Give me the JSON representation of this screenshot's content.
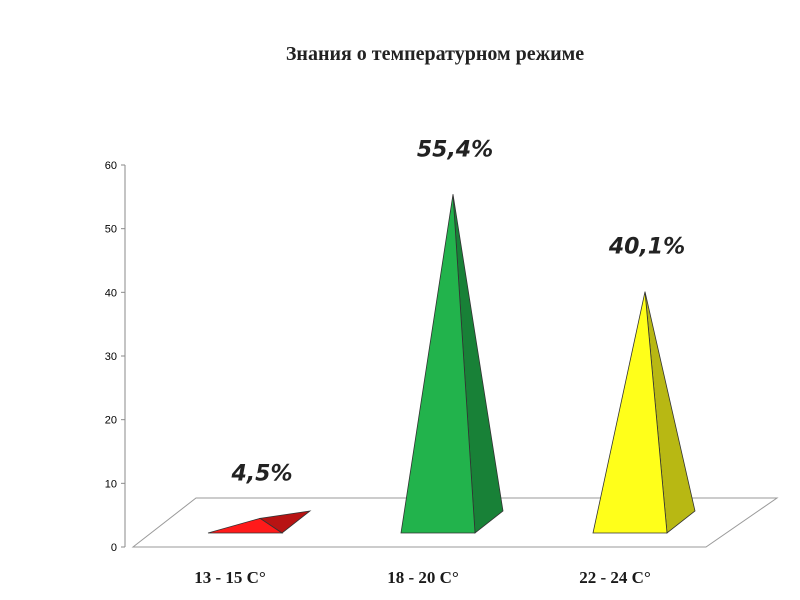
{
  "chart_data": {
    "type": "bar",
    "title": "Знания о температурном режиме",
    "categories": [
      "13 - 15 C°",
      "18 - 20 C°",
      "22 - 24 C°"
    ],
    "values": [
      4.5,
      55.4,
      40.1
    ],
    "data_labels": [
      "4,5%",
      "55,4%",
      "40,1%"
    ],
    "colors": [
      "#ff1a1a",
      "#22b34c",
      "#ffff1a"
    ],
    "y_ticks": [
      "0",
      "10",
      "20",
      "30",
      "40",
      "50",
      "60"
    ],
    "ylim": [
      0,
      60
    ],
    "grid": false,
    "legend": "none",
    "style": "3d-pyramid"
  }
}
